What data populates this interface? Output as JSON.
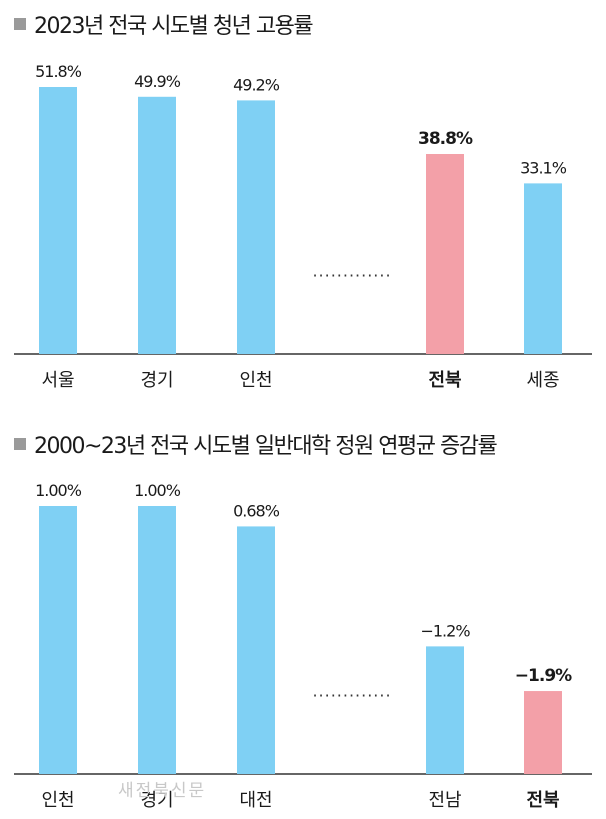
{
  "colors": {
    "bar": "#7fd0f4",
    "highlight": "#f3a0a8",
    "axis": "#333333",
    "dots": "#333333"
  },
  "watermark": "새전북신문",
  "chart_data": [
    {
      "type": "bar",
      "title": "2023년 전국 시도별 청년 고용률",
      "categories": [
        "서울",
        "경기",
        "인천",
        "전북",
        "세종"
      ],
      "values": [
        51.8,
        49.9,
        49.2,
        38.8,
        33.1
      ],
      "value_labels": [
        "51.8%",
        "49.9%",
        "49.2%",
        "38.8%",
        "33.1%"
      ],
      "highlight": "전북",
      "gap_marker": "·············",
      "ylim": [
        0,
        51.8
      ]
    },
    {
      "type": "bar",
      "title": "2000~23년 전국 시도별 일반대학 정원 연평균 증감률",
      "categories": [
        "인천",
        "경기",
        "대전",
        "전남",
        "전북"
      ],
      "values": [
        1.0,
        1.0,
        0.68,
        -1.2,
        -1.9
      ],
      "value_labels": [
        "1.00%",
        "1.00%",
        "0.68%",
        "−1.2%",
        "−1.9%"
      ],
      "highlight": "전북",
      "gap_marker": "·············",
      "ylim": [
        -3.2,
        1.0
      ]
    }
  ]
}
